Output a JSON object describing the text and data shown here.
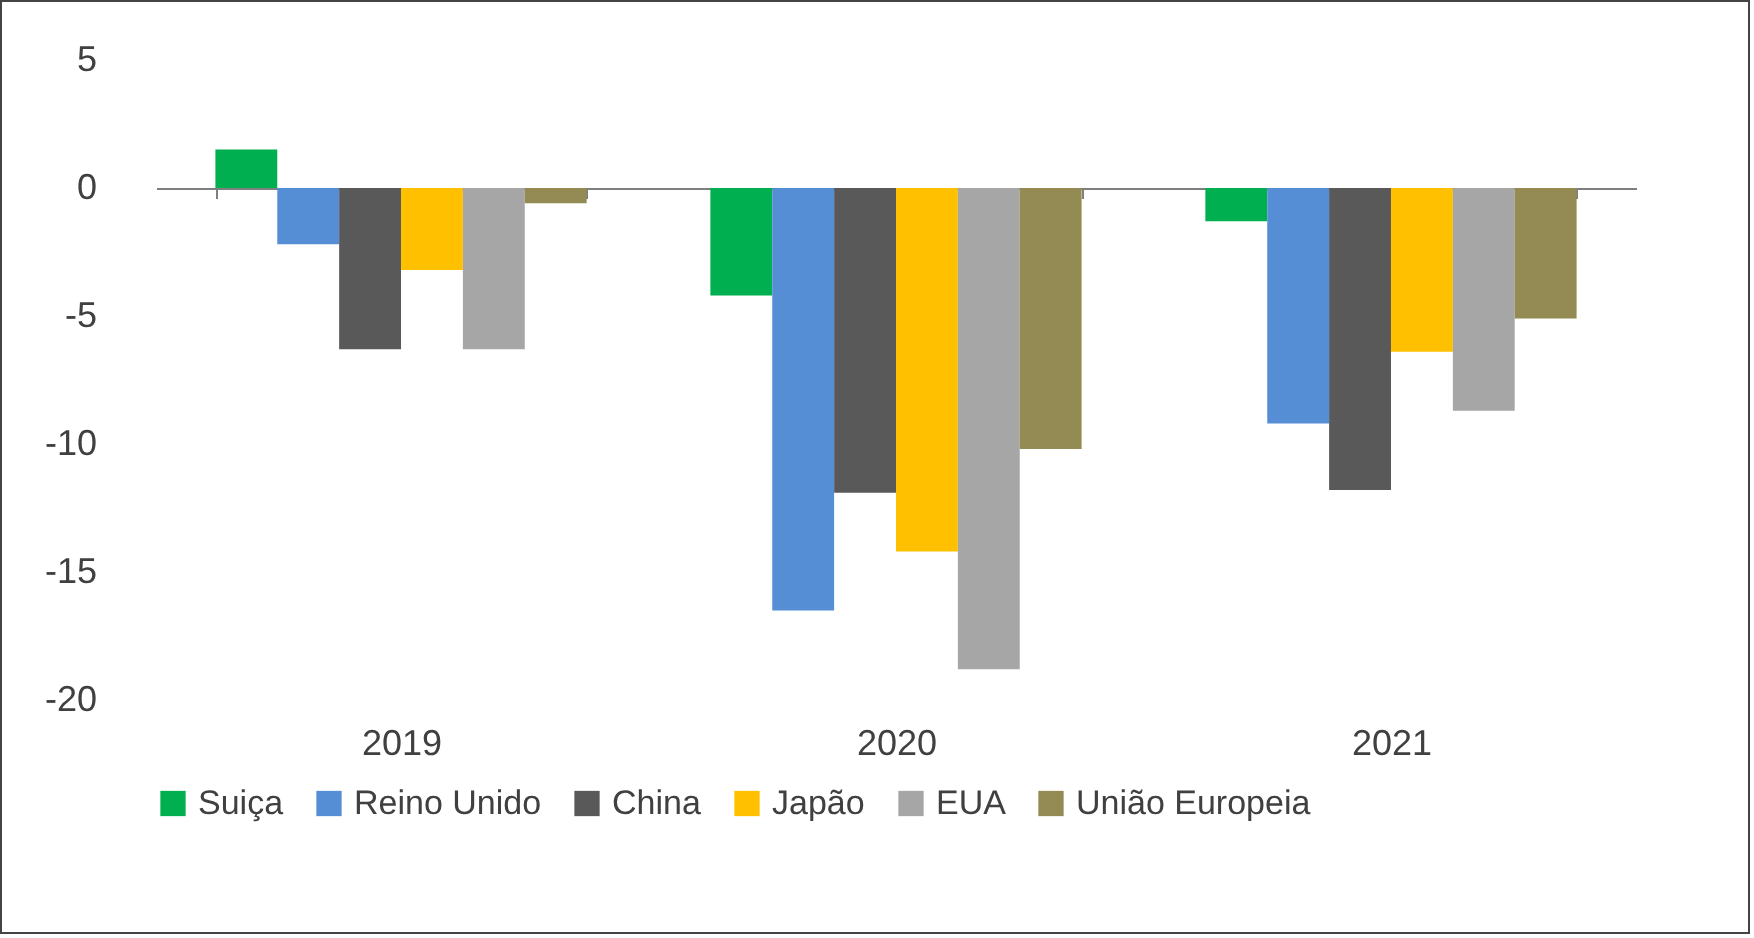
{
  "chart_data": {
    "type": "bar",
    "categories": [
      "2019",
      "2020",
      "2021"
    ],
    "series": [
      {
        "name": "Suiça",
        "color": "#00b050",
        "values": [
          1.5,
          -4.2,
          -1.3
        ]
      },
      {
        "name": "Reino Unido",
        "color": "#558ed5",
        "values": [
          -2.2,
          -16.5,
          -9.2
        ]
      },
      {
        "name": "China",
        "color": "#595959",
        "values": [
          -6.3,
          -11.9,
          -11.8
        ]
      },
      {
        "name": "Japão",
        "color": "#ffc000",
        "values": [
          -3.2,
          -14.2,
          -6.4
        ]
      },
      {
        "name": "EUA",
        "color": "#a6a6a6",
        "values": [
          -6.3,
          -18.8,
          -8.7
        ]
      },
      {
        "name": "União Europeia",
        "color": "#948a54",
        "values": [
          -0.6,
          -10.2,
          -5.1
        ]
      }
    ],
    "ylim": [
      -20,
      5
    ],
    "yticks": [
      -20,
      -15,
      -10,
      -5,
      0,
      5
    ],
    "legend": "bottom"
  }
}
